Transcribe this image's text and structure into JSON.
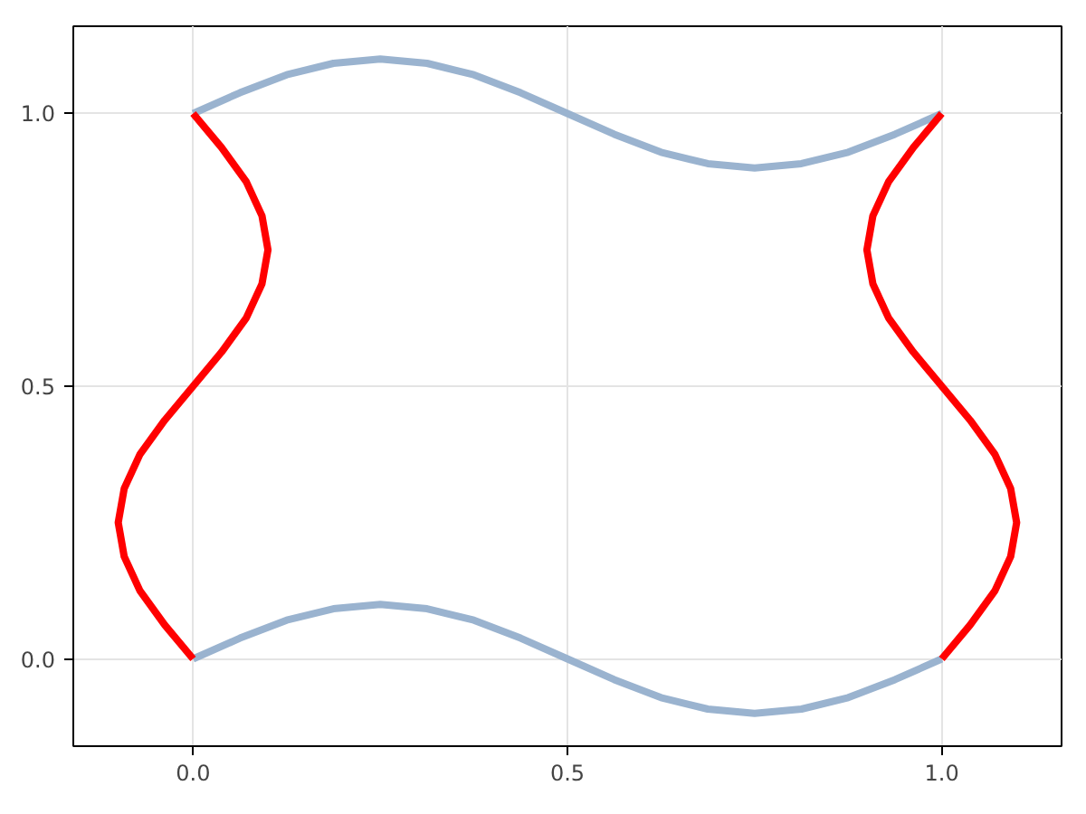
{
  "chart_data": {
    "type": "line",
    "xlim": [
      -0.16,
      1.16
    ],
    "ylim": [
      -0.16,
      1.16
    ],
    "xticks": [
      {
        "value": 0,
        "label": "0.0"
      },
      {
        "value": 0.5,
        "label": "0.5"
      },
      {
        "value": 1,
        "label": "1.0"
      }
    ],
    "yticks": [
      {
        "value": 0,
        "label": "0.0"
      },
      {
        "value": 0.5,
        "label": "0.5"
      },
      {
        "value": 1,
        "label": "1.0"
      }
    ],
    "grid": true,
    "marker": "none",
    "line_style": "solid",
    "series": [
      {
        "color": "#9ab3cf",
        "x": [
          0,
          0.0625,
          0.125,
          0.1875,
          0.25,
          0.3125,
          0.375,
          0.4375,
          0.5,
          0.5625,
          0.625,
          0.6875,
          0.75,
          0.8125,
          0.875,
          0.9375,
          1
        ],
        "values": [
          0,
          0.038,
          0.071,
          0.092,
          0.1,
          0.092,
          0.071,
          0.038,
          0,
          -0.038,
          -0.071,
          -0.092,
          -0.1,
          -0.092,
          -0.071,
          -0.038,
          0
        ]
      },
      {
        "color": "#9ab3cf",
        "x": [
          0,
          0.0625,
          0.125,
          0.1875,
          0.25,
          0.3125,
          0.375,
          0.4375,
          0.5,
          0.5625,
          0.625,
          0.6875,
          0.75,
          0.8125,
          0.875,
          0.9375,
          1
        ],
        "values": [
          1,
          1.038,
          1.071,
          1.092,
          1.1,
          1.092,
          1.071,
          1.038,
          1,
          0.962,
          0.929,
          0.908,
          0.9,
          0.908,
          0.929,
          0.962,
          1
        ]
      },
      {
        "color": "#ff0000",
        "x": [
          0,
          -0.038,
          -0.071,
          -0.092,
          -0.1,
          -0.092,
          -0.071,
          -0.038,
          0,
          0.038,
          0.071,
          0.092,
          0.1,
          0.092,
          0.071,
          0.038,
          0
        ],
        "values": [
          0,
          0.0625,
          0.125,
          0.1875,
          0.25,
          0.3125,
          0.375,
          0.4375,
          0.5,
          0.5625,
          0.625,
          0.6875,
          0.75,
          0.8125,
          0.875,
          0.9375,
          1
        ]
      },
      {
        "color": "#ff0000",
        "x": [
          1,
          1.038,
          1.071,
          1.092,
          1.1,
          1.092,
          1.071,
          1.038,
          1,
          0.962,
          0.929,
          0.908,
          0.9,
          0.908,
          0.929,
          0.962,
          1
        ],
        "values": [
          0,
          0.0625,
          0.125,
          0.1875,
          0.25,
          0.3125,
          0.375,
          0.4375,
          0.5,
          0.5625,
          0.625,
          0.6875,
          0.75,
          0.8125,
          0.875,
          0.9375,
          1
        ]
      }
    ]
  }
}
